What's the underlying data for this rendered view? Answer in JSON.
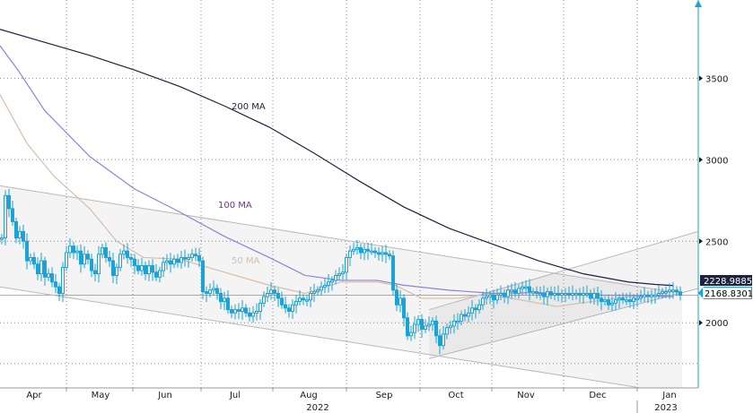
{
  "chart_data": {
    "type": "candlestick",
    "y_ticks": [
      2000,
      2500,
      3000,
      3500
    ],
    "ylim": [
      1600,
      3980
    ],
    "x_months": [
      "Apr",
      "May",
      "Jun",
      "Jul",
      "Aug",
      "Sep",
      "Oct",
      "Nov",
      "Dec",
      "Jan"
    ],
    "x_years": [
      "2022",
      "2023"
    ],
    "grid": true,
    "colors": {
      "candle": "#1aa3d9",
      "ma200": "#1c2340",
      "ma100": "#8a84e0",
      "ma50": "#d6bfa8",
      "channel": "#b8b8b8",
      "label_bg": "#1aa3d9"
    },
    "ma_labels": {
      "ma200": "200 MA",
      "ma100": "100 MA",
      "ma50": "50 MA"
    },
    "series": {
      "ma200": [
        [
          0,
          3800
        ],
        [
          50,
          3720
        ],
        [
          100,
          3640
        ],
        [
          150,
          3550
        ],
        [
          200,
          3450
        ],
        [
          250,
          3330
        ],
        [
          300,
          3200
        ],
        [
          350,
          3040
        ],
        [
          400,
          2870
        ],
        [
          450,
          2710
        ],
        [
          500,
          2580
        ],
        [
          550,
          2480
        ],
        [
          600,
          2380
        ],
        [
          650,
          2300
        ],
        [
          700,
          2250
        ],
        [
          730,
          2235
        ],
        [
          750,
          2228
        ]
      ],
      "ma100": [
        [
          0,
          3700
        ],
        [
          20,
          3550
        ],
        [
          50,
          3300
        ],
        [
          100,
          3020
        ],
        [
          150,
          2820
        ],
        [
          200,
          2680
        ],
        [
          250,
          2530
        ],
        [
          300,
          2400
        ],
        [
          340,
          2290
        ],
        [
          380,
          2260
        ],
        [
          420,
          2260
        ],
        [
          450,
          2230
        ],
        [
          500,
          2200
        ],
        [
          550,
          2180
        ],
        [
          600,
          2185
        ],
        [
          650,
          2170
        ],
        [
          700,
          2168
        ],
        [
          750,
          2160
        ]
      ],
      "ma50": [
        [
          0,
          3400
        ],
        [
          30,
          3100
        ],
        [
          60,
          2900
        ],
        [
          100,
          2700
        ],
        [
          130,
          2500
        ],
        [
          160,
          2400
        ],
        [
          200,
          2390
        ],
        [
          250,
          2310
        ],
        [
          300,
          2230
        ],
        [
          340,
          2180
        ],
        [
          380,
          2250
        ],
        [
          420,
          2250
        ],
        [
          440,
          2230
        ],
        [
          470,
          2150
        ],
        [
          510,
          2150
        ],
        [
          540,
          2175
        ],
        [
          580,
          2140
        ],
        [
          620,
          2100
        ],
        [
          660,
          2130
        ],
        [
          700,
          2160
        ],
        [
          750,
          2165
        ]
      ],
      "candles": [
        [
          2,
          2520
        ],
        [
          6,
          2780
        ],
        [
          10,
          2700
        ],
        [
          14,
          2620
        ],
        [
          18,
          2520
        ],
        [
          22,
          2560
        ],
        [
          26,
          2500
        ],
        [
          30,
          2380
        ],
        [
          34,
          2400
        ],
        [
          38,
          2360
        ],
        [
          42,
          2300
        ],
        [
          46,
          2380
        ],
        [
          50,
          2280
        ],
        [
          54,
          2300
        ],
        [
          58,
          2250
        ],
        [
          62,
          2220
        ],
        [
          66,
          2180
        ],
        [
          70,
          2340
        ],
        [
          74,
          2430
        ],
        [
          78,
          2470
        ],
        [
          82,
          2430
        ],
        [
          86,
          2440
        ],
        [
          90,
          2360
        ],
        [
          94,
          2420
        ],
        [
          98,
          2390
        ],
        [
          102,
          2320
        ],
        [
          106,
          2300
        ],
        [
          110,
          2420
        ],
        [
          114,
          2460
        ],
        [
          118,
          2400
        ],
        [
          122,
          2380
        ],
        [
          126,
          2290
        ],
        [
          130,
          2340
        ],
        [
          134,
          2420
        ],
        [
          138,
          2440
        ],
        [
          142,
          2400
        ],
        [
          146,
          2390
        ],
        [
          150,
          2350
        ],
        [
          154,
          2320
        ],
        [
          158,
          2350
        ],
        [
          162,
          2300
        ],
        [
          166,
          2350
        ],
        [
          170,
          2310
        ],
        [
          174,
          2280
        ],
        [
          178,
          2320
        ],
        [
          182,
          2370
        ],
        [
          186,
          2380
        ],
        [
          190,
          2360
        ],
        [
          194,
          2390
        ],
        [
          198,
          2370
        ],
        [
          202,
          2400
        ],
        [
          206,
          2390
        ],
        [
          210,
          2400
        ],
        [
          214,
          2420
        ],
        [
          218,
          2410
        ],
        [
          222,
          2380
        ],
        [
          226,
          2190
        ],
        [
          230,
          2180
        ],
        [
          234,
          2200
        ],
        [
          238,
          2210
        ],
        [
          242,
          2180
        ],
        [
          246,
          2130
        ],
        [
          250,
          2150
        ],
        [
          254,
          2080
        ],
        [
          258,
          2060
        ],
        [
          262,
          2080
        ],
        [
          266,
          2070
        ],
        [
          270,
          2090
        ],
        [
          274,
          2060
        ],
        [
          278,
          2040
        ],
        [
          282,
          2060
        ],
        [
          286,
          2070
        ],
        [
          290,
          2120
        ],
        [
          294,
          2160
        ],
        [
          298,
          2180
        ],
        [
          302,
          2200
        ],
        [
          306,
          2180
        ],
        [
          310,
          2150
        ],
        [
          314,
          2110
        ],
        [
          318,
          2090
        ],
        [
          322,
          2070
        ],
        [
          326,
          2110
        ],
        [
          330,
          2130
        ],
        [
          334,
          2150
        ],
        [
          338,
          2140
        ],
        [
          342,
          2140
        ],
        [
          346,
          2180
        ],
        [
          350,
          2190
        ],
        [
          354,
          2200
        ],
        [
          358,
          2220
        ],
        [
          362,
          2230
        ],
        [
          366,
          2250
        ],
        [
          370,
          2260
        ],
        [
          374,
          2290
        ],
        [
          378,
          2300
        ],
        [
          382,
          2310
        ],
        [
          386,
          2400
        ],
        [
          390,
          2440
        ],
        [
          394,
          2450
        ],
        [
          398,
          2460
        ],
        [
          402,
          2430
        ],
        [
          406,
          2450
        ],
        [
          410,
          2440
        ],
        [
          414,
          2440
        ],
        [
          418,
          2430
        ],
        [
          422,
          2420
        ],
        [
          426,
          2430
        ],
        [
          430,
          2420
        ],
        [
          434,
          2410
        ],
        [
          438,
          2200
        ],
        [
          442,
          2110
        ],
        [
          446,
          2150
        ],
        [
          450,
          2030
        ],
        [
          454,
          1920
        ],
        [
          458,
          1940
        ],
        [
          462,
          1990
        ],
        [
          466,
          2020
        ],
        [
          470,
          1960
        ],
        [
          474,
          1980
        ],
        [
          478,
          1990
        ],
        [
          482,
          2010
        ],
        [
          486,
          1920
        ],
        [
          490,
          1860
        ],
        [
          494,
          1930
        ],
        [
          498,
          1970
        ],
        [
          502,
          1980
        ],
        [
          506,
          2010
        ],
        [
          510,
          2010
        ],
        [
          514,
          2050
        ],
        [
          518,
          2040
        ],
        [
          522,
          2060
        ],
        [
          526,
          2090
        ],
        [
          530,
          2080
        ],
        [
          534,
          2110
        ],
        [
          538,
          2150
        ],
        [
          542,
          2160
        ],
        [
          546,
          2170
        ],
        [
          550,
          2140
        ],
        [
          554,
          2170
        ],
        [
          558,
          2180
        ],
        [
          562,
          2160
        ],
        [
          566,
          2200
        ],
        [
          570,
          2200
        ],
        [
          574,
          2180
        ],
        [
          578,
          2210
        ],
        [
          582,
          2220
        ],
        [
          586,
          2220
        ],
        [
          590,
          2190
        ],
        [
          594,
          2190
        ],
        [
          598,
          2180
        ],
        [
          602,
          2180
        ],
        [
          606,
          2160
        ],
        [
          610,
          2190
        ],
        [
          614,
          2170
        ],
        [
          618,
          2180
        ],
        [
          622,
          2170
        ],
        [
          626,
          2180
        ],
        [
          630,
          2180
        ],
        [
          634,
          2170
        ],
        [
          638,
          2180
        ],
        [
          642,
          2180
        ],
        [
          646,
          2170
        ],
        [
          650,
          2180
        ],
        [
          654,
          2180
        ],
        [
          658,
          2150
        ],
        [
          662,
          2180
        ],
        [
          666,
          2150
        ],
        [
          670,
          2130
        ],
        [
          674,
          2140
        ],
        [
          678,
          2110
        ],
        [
          682,
          2120
        ],
        [
          686,
          2140
        ],
        [
          690,
          2150
        ],
        [
          694,
          2140
        ],
        [
          698,
          2140
        ],
        [
          702,
          2130
        ],
        [
          706,
          2150
        ],
        [
          710,
          2150
        ],
        [
          714,
          2160
        ],
        [
          718,
          2170
        ],
        [
          722,
          2160
        ],
        [
          726,
          2170
        ],
        [
          730,
          2170
        ],
        [
          734,
          2180
        ],
        [
          738,
          2190
        ],
        [
          742,
          2190
        ],
        [
          746,
          2200
        ],
        [
          750,
          2200
        ],
        [
          754,
          2190
        ],
        [
          758,
          2169
        ]
      ],
      "channel_main_upper": [
        [
          0,
          2840
        ],
        [
          760,
          2180
        ]
      ],
      "channel_main_lower": [
        [
          0,
          2220
        ],
        [
          760,
          1560
        ]
      ],
      "channel_rising_lower": [
        [
          478,
          1780
        ],
        [
          778,
          2210
        ]
      ],
      "channel_rising_upper": [
        [
          478,
          2080
        ],
        [
          778,
          2560
        ]
      ]
    },
    "price_labels": {
      "last": "2168.8301",
      "ma200": "2228.9885"
    }
  }
}
